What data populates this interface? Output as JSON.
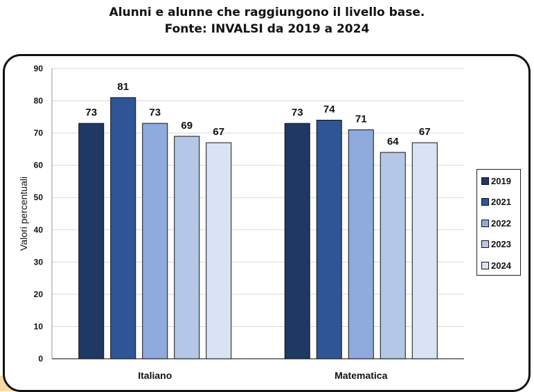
{
  "title": {
    "line1": "Alunni e alunne che raggiungono il livello base.",
    "line2": "Fonte: INVALSI da 2019 a 2024"
  },
  "chart_data": {
    "type": "bar",
    "categories": [
      "Italiano",
      "Matematica"
    ],
    "series": [
      {
        "name": "2019",
        "values": [
          73,
          73
        ],
        "color": "#203864"
      },
      {
        "name": "2021",
        "values": [
          81,
          74
        ],
        "color": "#2f5597"
      },
      {
        "name": "2022",
        "values": [
          73,
          71
        ],
        "color": "#8faadc"
      },
      {
        "name": "2023",
        "values": [
          69,
          64
        ],
        "color": "#b4c7e7"
      },
      {
        "name": "2024",
        "values": [
          67,
          67
        ],
        "color": "#dae3f3"
      }
    ],
    "ylabel": "Valori percentuali",
    "ylim": [
      0,
      90
    ],
    "yticks": [
      0,
      10,
      20,
      30,
      40,
      50,
      60,
      70,
      80,
      90
    ],
    "grid": true,
    "legend": "right"
  }
}
